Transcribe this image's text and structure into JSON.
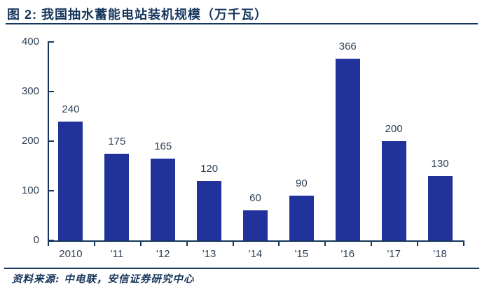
{
  "header": {
    "title": "图 2: 我国抽水蓄能电站装机规模（万千瓦）"
  },
  "footer": {
    "source": "资料来源: 中电联，安信证券研究中心"
  },
  "colors": {
    "bar": "#21339B",
    "title": "#17365D",
    "axis": "#17365D",
    "label": "#2E4157",
    "background": "#FFFFFF"
  },
  "chart_data": {
    "type": "bar",
    "title": "我国抽水蓄能电站装机规模（万千瓦）",
    "categories": [
      "2010",
      "'11",
      "'12",
      "'13",
      "'14",
      "'15",
      "'16",
      "'17",
      "'18"
    ],
    "values": [
      240,
      175,
      165,
      120,
      60,
      90,
      366,
      200,
      130
    ],
    "xlabel": "",
    "ylabel": "",
    "ylim": [
      0,
      400
    ],
    "yticks": [
      0,
      100,
      200,
      300,
      400
    ],
    "grid": false,
    "legend": null,
    "data_labels": true,
    "bar_color": "#21339B"
  }
}
